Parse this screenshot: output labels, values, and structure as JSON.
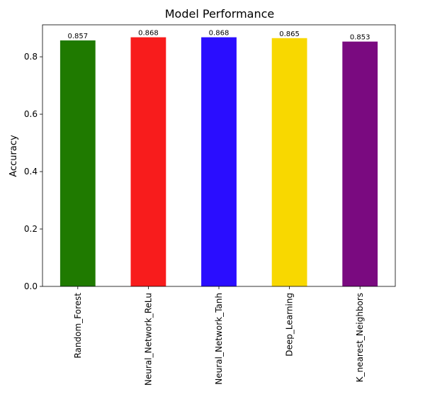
{
  "chart_data": {
    "type": "bar",
    "title": "Model Performance",
    "xlabel": "",
    "ylabel": "Accuracy",
    "categories": [
      "Random_Forest",
      "Neural_Network_ReLu",
      "Neural_Network_Tanh",
      "Deep_Learning",
      "K_nearest_Neighbors"
    ],
    "values": [
      0.857,
      0.868,
      0.868,
      0.865,
      0.853
    ],
    "data_labels": [
      "0.857",
      "0.868",
      "0.868",
      "0.865",
      "0.853"
    ],
    "colors": [
      "#1f7a00",
      "#f81c1c",
      "#2a0dff",
      "#f8d800",
      "#7a0a80"
    ],
    "ylim": [
      0,
      0.9114
    ],
    "yticks": [
      0.0,
      0.2,
      0.4,
      0.6,
      0.8
    ],
    "ytick_labels": [
      "0.0",
      "0.2",
      "0.4",
      "0.6",
      "0.8"
    ],
    "grid": false,
    "legend": "none"
  }
}
